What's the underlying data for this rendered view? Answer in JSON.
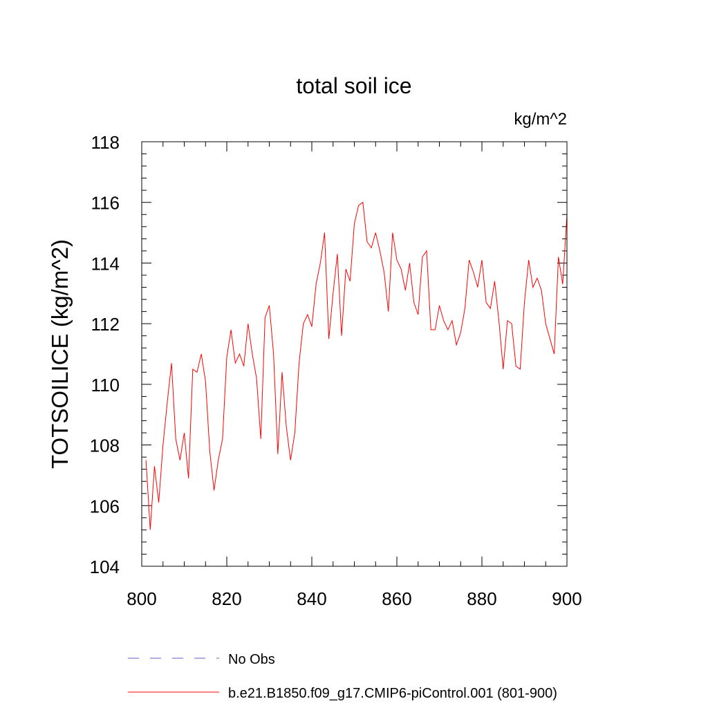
{
  "chart_data": {
    "type": "line",
    "title": "total soil ice",
    "units_label": "kg/m^2",
    "ylabel": "TOTSOILICE  (kg/m^2)",
    "xlabel": "",
    "xlim": [
      800,
      900
    ],
    "ylim": [
      104,
      118
    ],
    "xticks": [
      800,
      820,
      840,
      860,
      880,
      900
    ],
    "yticks": [
      104,
      106,
      108,
      110,
      112,
      114,
      116,
      118
    ],
    "x_minor_step": 5,
    "y_minor_step": 0.4,
    "grid": false,
    "legend_position": "bottom-left",
    "series": [
      {
        "name": "No Obs",
        "style": "dashed",
        "color": "#6a5acd",
        "x": [],
        "values": []
      },
      {
        "name": "b.e21.B1850.f09_g17.CMIP6-piControl.001 (801-900)",
        "style": "solid",
        "color": "#ff0000",
        "x": [
          801,
          802,
          803,
          804,
          805,
          806,
          807,
          808,
          809,
          810,
          811,
          812,
          813,
          814,
          815,
          816,
          817,
          818,
          819,
          820,
          821,
          822,
          823,
          824,
          825,
          826,
          827,
          828,
          829,
          830,
          831,
          832,
          833,
          834,
          835,
          836,
          837,
          838,
          839,
          840,
          841,
          842,
          843,
          844,
          845,
          846,
          847,
          848,
          849,
          850,
          851,
          852,
          853,
          854,
          855,
          856,
          857,
          858,
          859,
          860,
          861,
          862,
          863,
          864,
          865,
          866,
          867,
          868,
          869,
          870,
          871,
          872,
          873,
          874,
          875,
          876,
          877,
          878,
          879,
          880,
          881,
          882,
          883,
          884,
          885,
          886,
          887,
          888,
          889,
          890,
          891,
          892,
          893,
          894,
          895,
          896,
          897,
          898,
          899,
          900
        ],
        "values": [
          107.5,
          105.2,
          107.3,
          106.1,
          108.0,
          109.4,
          110.7,
          108.2,
          107.5,
          108.4,
          106.9,
          110.5,
          110.4,
          111.0,
          110.1,
          107.8,
          106.5,
          107.5,
          108.2,
          110.9,
          111.8,
          110.7,
          111.0,
          110.6,
          112.0,
          111.0,
          110.2,
          108.2,
          112.2,
          112.6,
          111.0,
          107.7,
          110.4,
          108.6,
          107.5,
          108.4,
          110.7,
          112.0,
          112.3,
          111.9,
          113.3,
          114.0,
          115.0,
          111.5,
          113.0,
          114.3,
          111.6,
          113.8,
          113.4,
          115.3,
          115.9,
          116.0,
          114.7,
          114.5,
          115.0,
          114.4,
          113.7,
          112.4,
          115.0,
          114.1,
          113.8,
          113.1,
          114.0,
          112.7,
          112.3,
          114.2,
          114.4,
          111.8,
          111.8,
          112.6,
          112.1,
          111.8,
          112.1,
          111.3,
          111.7,
          112.5,
          114.1,
          113.7,
          113.2,
          114.1,
          112.7,
          112.5,
          113.4,
          112.1,
          110.5,
          112.1,
          112.0,
          110.6,
          110.5,
          112.7,
          114.1,
          113.2,
          113.5,
          113.1,
          112.0,
          111.5,
          111.0,
          114.2,
          113.3,
          115.6
        ]
      }
    ]
  }
}
